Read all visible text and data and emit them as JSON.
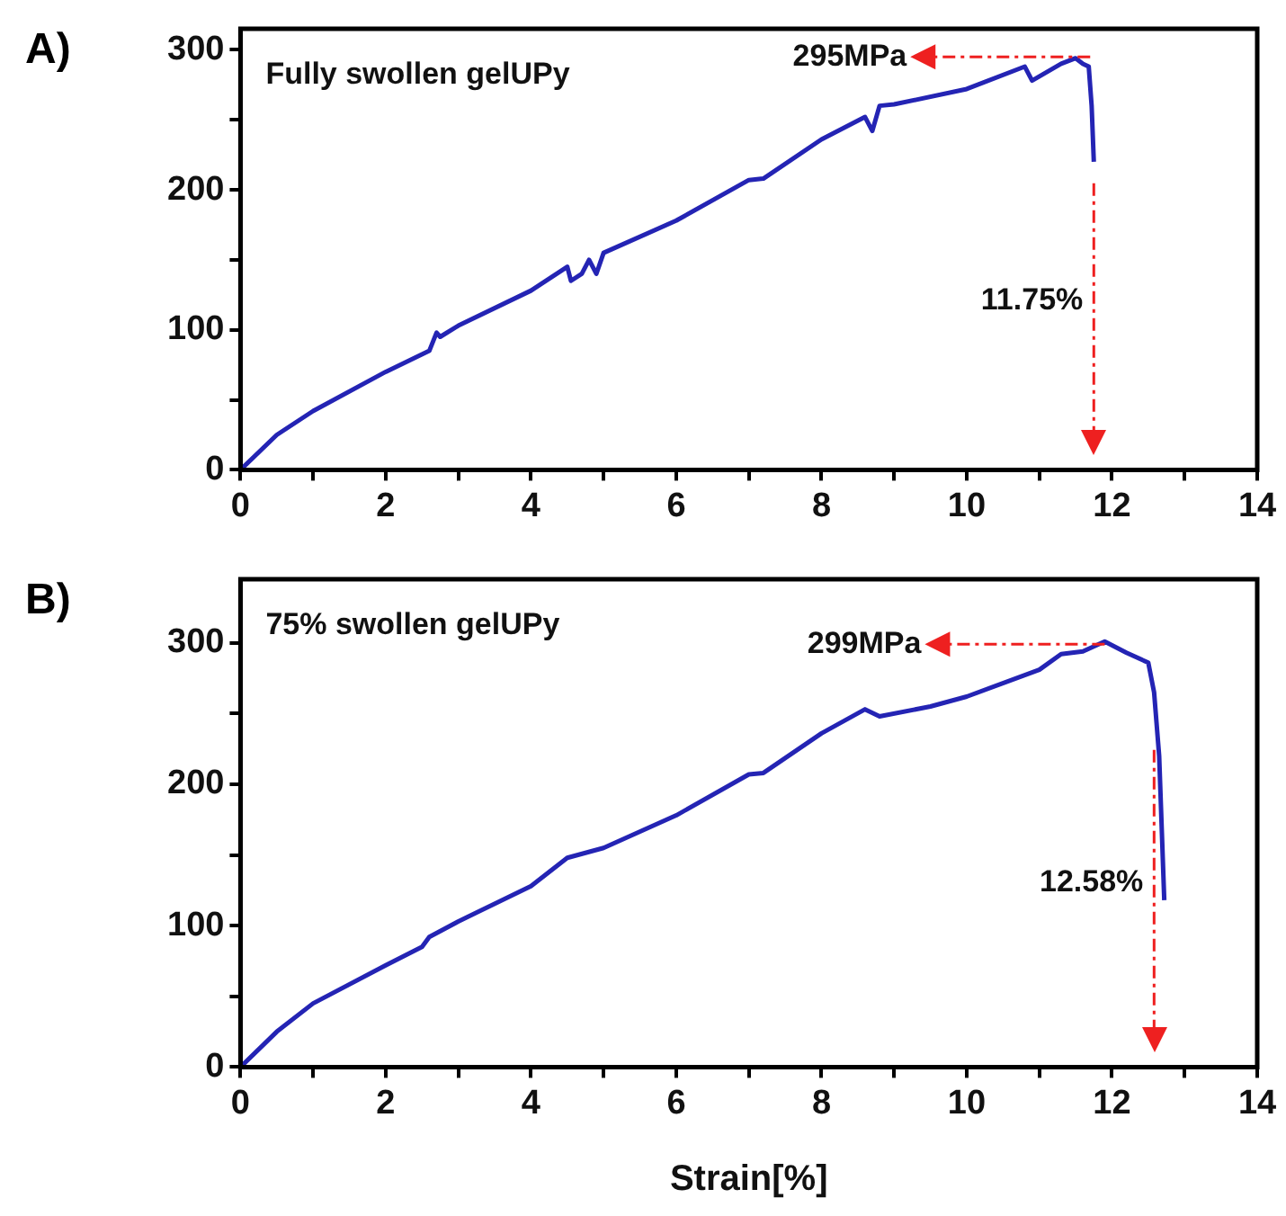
{
  "chart_data": [
    {
      "type": "line",
      "title": "A)",
      "xlim": [
        0,
        14
      ],
      "ylim": [
        0,
        315
      ],
      "xticks": [
        0,
        {
          "value": 1,
          "label": null
        },
        2,
        {
          "value": 3,
          "label": null
        },
        4,
        {
          "value": 5,
          "label": null
        },
        6,
        {
          "value": 7,
          "label": null
        },
        8,
        {
          "value": 9,
          "label": null
        },
        10,
        {
          "value": 11,
          "label": null
        },
        12,
        {
          "value": 13,
          "label": null
        },
        14
      ],
      "yticks": [
        0,
        {
          "value": 50,
          "label": null
        },
        100,
        {
          "value": 150,
          "label": null
        },
        200,
        {
          "value": 250,
          "label": null
        },
        300
      ],
      "grid": false,
      "legend": false,
      "marker": "none",
      "line_style": "solid",
      "annotations": [
        "Fully swollen gelUPy",
        {
          "text": "295MPa",
          "x": 11.7,
          "y": 295
        }
      ],
      "ref_lines": [
        {
          "axis": "x",
          "value": 11.75,
          "label": "11.75%",
          "color": "#ee2020"
        }
      ],
      "series": [
        {
          "color": "#2424b4",
          "x": [
            0,
            0.5,
            1,
            2,
            2.6,
            2.7,
            2.75,
            3,
            4,
            4.5,
            4.55,
            4.7,
            4.8,
            4.9,
            5,
            6,
            7,
            7.2,
            8,
            8.6,
            8.7,
            8.8,
            9,
            10,
            10.8,
            10.9,
            11.3,
            11.5,
            11.6,
            11.68,
            11.72,
            11.75
          ],
          "values": [
            0,
            25,
            42,
            70,
            85,
            98,
            95,
            103,
            128,
            145,
            135,
            140,
            150,
            140,
            155,
            178,
            207,
            208,
            236,
            252,
            242,
            260,
            261,
            272,
            288,
            278,
            290,
            294,
            290,
            288,
            260,
            220
          ]
        }
      ]
    },
    {
      "type": "line",
      "title": "B)",
      "xlabel": "Strain[%]",
      "xlim": [
        0,
        14
      ],
      "ylim": [
        0,
        345
      ],
      "xticks": [
        0,
        {
          "value": 1,
          "label": null
        },
        2,
        {
          "value": 3,
          "label": null
        },
        4,
        {
          "value": 5,
          "label": null
        },
        6,
        {
          "value": 7,
          "label": null
        },
        8,
        {
          "value": 9,
          "label": null
        },
        10,
        {
          "value": 11,
          "label": null
        },
        12,
        {
          "value": 13,
          "label": null
        },
        14
      ],
      "yticks": [
        0,
        {
          "value": 50,
          "label": null
        },
        100,
        {
          "value": 150,
          "label": null
        },
        200,
        {
          "value": 250,
          "label": null
        },
        300
      ],
      "grid": false,
      "legend": false,
      "marker": "none",
      "line_style": "solid",
      "annotations": [
        "75% swollen gelUPy",
        {
          "text": "299MPa",
          "x": 11.9,
          "y": 299
        }
      ],
      "ref_lines": [
        {
          "axis": "x",
          "value": 12.58,
          "label": "12.58%",
          "color": "#ee2020"
        }
      ],
      "series": [
        {
          "color": "#2424b4",
          "x": [
            0,
            0.5,
            1,
            2,
            2.5,
            2.6,
            3,
            4,
            4.5,
            5,
            6,
            7,
            7.2,
            8,
            8.6,
            8.8,
            9.5,
            10,
            11,
            11.3,
            11.6,
            11.9,
            12.2,
            12.5,
            12.58,
            12.65,
            12.72
          ],
          "values": [
            0,
            25,
            45,
            72,
            85,
            92,
            103,
            128,
            148,
            155,
            178,
            207,
            208,
            236,
            253,
            248,
            255,
            262,
            281,
            292,
            294,
            301,
            293,
            286,
            265,
            220,
            118
          ]
        }
      ]
    }
  ]
}
